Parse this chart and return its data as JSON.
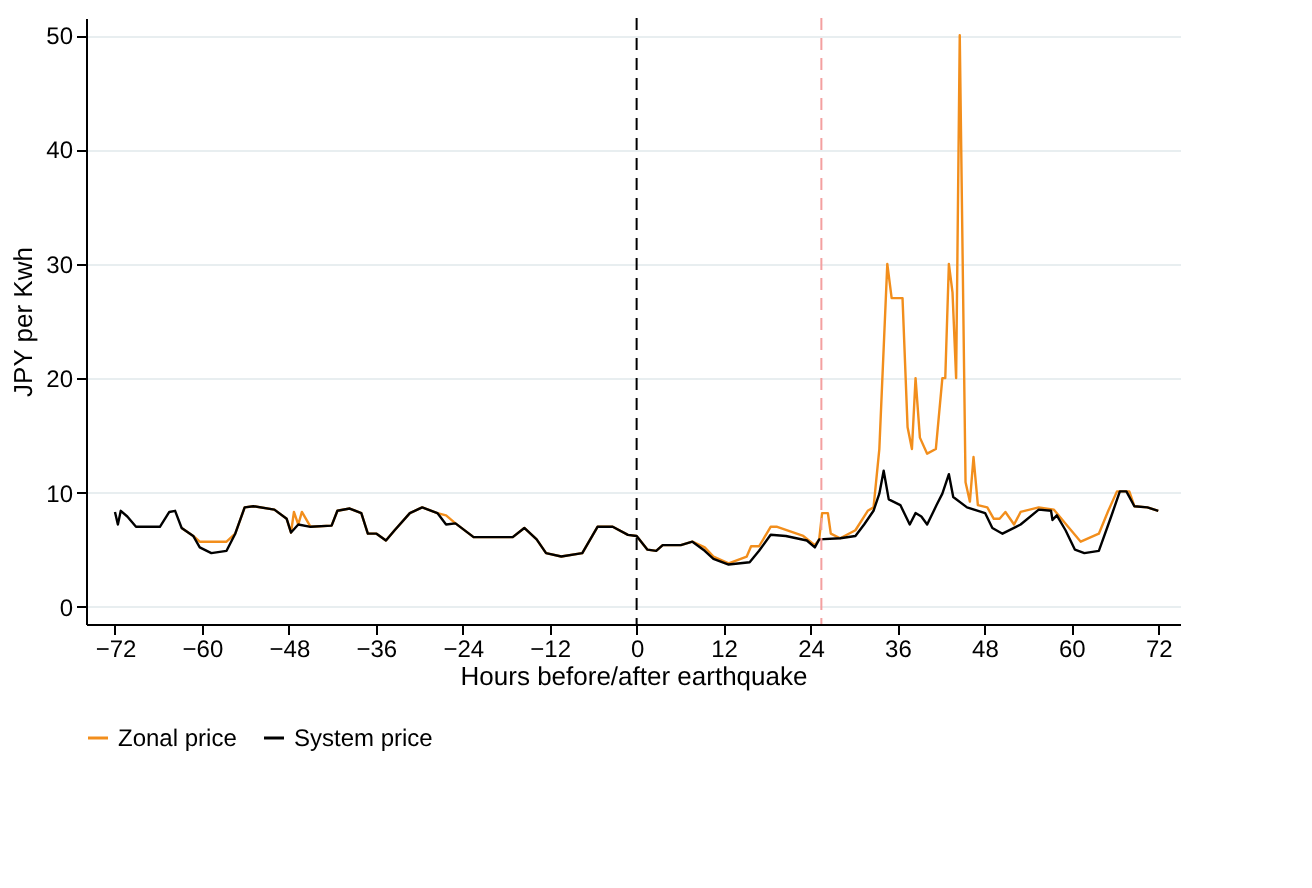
{
  "chart_data": {
    "type": "line",
    "xlabel": "Hours before/after earthquake",
    "ylabel": "JPY per Kwh",
    "xlim": [
      -76,
      75
    ],
    "ylim": [
      -1.5,
      51.5
    ],
    "xticks": [
      -72,
      -60,
      -48,
      -36,
      -24,
      -12,
      0,
      12,
      24,
      36,
      48,
      60,
      72
    ],
    "yticks": [
      0,
      10,
      20,
      30,
      40,
      50
    ],
    "grid": "y",
    "legend": "bottom",
    "line_style": "solid",
    "ref_lines": [
      {
        "axis": "x",
        "value": 0,
        "color": "#000000",
        "line_style": "dashed"
      },
      {
        "axis": "x",
        "value": 25.5,
        "color": "#f4a0a0",
        "line_style": "dashed"
      }
    ],
    "series": [
      {
        "name": "Zonal price",
        "color": "#f28e1c",
        "x": [
          -62.8,
          -61.2,
          -60.3,
          -58.7,
          -56.6,
          -55.4,
          -54.1,
          -52.9,
          -50,
          -48.3,
          -47.7,
          -47.3,
          -46.7,
          -46.2,
          -45,
          -42.1,
          -41.3,
          -39.6,
          -38,
          -37.1,
          -35.9,
          -34.6,
          -33.4,
          -31.3,
          -29.6,
          -27.5,
          -26.3,
          -25,
          -22.5,
          -17.1,
          -15.5,
          -13.8,
          -12.5,
          -10.4,
          -7.5,
          -5.4,
          -3.3,
          -1.2,
          0,
          1.5,
          2.7,
          3.6,
          6.1,
          7.7,
          9.4,
          10.6,
          12.7,
          15.2,
          15.8,
          16.9,
          18.5,
          19.4,
          23,
          24.6,
          25.2,
          25.6,
          26.4,
          26.8,
          28.1,
          30.2,
          31.9,
          32.7,
          33.5,
          34.6,
          35.2,
          36.7,
          37.4,
          38,
          38.5,
          39.1,
          40.1,
          41.3,
          42.2,
          42.6,
          43.1,
          43.6,
          44.1,
          44.6,
          45.4,
          46,
          46.5,
          47.1,
          48.4,
          49.3,
          50.1,
          50.9,
          52.1,
          53,
          55.5,
          57.6,
          59.7,
          61.3,
          63.8,
          65.1,
          66.3,
          68,
          68.7,
          70.5,
          72
        ],
        "values": [
          6.9,
          6.2,
          5.7,
          5.7,
          5.7,
          6.4,
          8.7,
          8.8,
          8.5,
          7.7,
          6.5,
          8.3,
          7.2,
          8.3,
          7,
          7.1,
          8.4,
          8.6,
          8.2,
          6.4,
          6.4,
          5.8,
          6.7,
          8.2,
          8.7,
          8.2,
          8,
          7.3,
          6.1,
          6.1,
          6.9,
          5.9,
          4.7,
          4.4,
          4.7,
          7,
          7,
          6.3,
          6.2,
          5,
          4.9,
          5.4,
          5.4,
          5.7,
          5.2,
          4.4,
          3.8,
          4.4,
          5.3,
          5.3,
          7,
          7,
          6.2,
          5.4,
          5.9,
          8.2,
          8.2,
          6.4,
          6,
          6.7,
          8.4,
          8.7,
          13.8,
          30,
          27,
          27,
          15.7,
          13.8,
          20,
          14.8,
          13.4,
          13.8,
          20,
          20,
          30,
          27.5,
          20,
          50,
          10.9,
          9.2,
          13.1,
          8.9,
          8.7,
          7.7,
          7.7,
          8.3,
          7.2,
          8.3,
          8.7,
          8.5,
          6.9,
          5.7,
          6.4,
          8.4,
          10.1,
          10.1,
          8.8,
          8.7,
          8.4
        ]
      },
      {
        "name": "System price",
        "color": "#000000",
        "x": [
          -72,
          -71.6,
          -71.2,
          -70.3,
          -69.1,
          -65.8,
          -64.5,
          -63.7,
          -62.8,
          -61.2,
          -60.3,
          -58.7,
          -56.6,
          -55.4,
          -54.1,
          -52.9,
          -50,
          -48.3,
          -47.7,
          -46.7,
          -45,
          -42.1,
          -41.3,
          -39.6,
          -38,
          -37.1,
          -35.9,
          -34.6,
          -33.4,
          -31.3,
          -29.6,
          -27.5,
          -26.3,
          -25,
          -22.5,
          -17.1,
          -15.5,
          -13.8,
          -12.5,
          -10.4,
          -7.5,
          -5.4,
          -3.3,
          -1.2,
          0,
          1.5,
          2.7,
          3.6,
          6.1,
          7.7,
          9.4,
          10.6,
          12.7,
          15.6,
          16.9,
          18.5,
          20.6,
          23.5,
          24.6,
          25.2,
          28.1,
          30.2,
          31.4,
          32.7,
          33.5,
          34.1,
          34.8,
          36.4,
          37.7,
          38.5,
          39.3,
          40.1,
          41.4,
          42.2,
          43.1,
          43.7,
          45.6,
          48.1,
          49.1,
          50.5,
          53,
          55.5,
          57.2,
          57.4,
          58,
          59.2,
          60.5,
          61.8,
          63.8,
          65.5,
          66.7,
          67.6,
          68.7,
          70.5,
          72
        ],
        "values": [
          8.3,
          7.2,
          8.4,
          7.9,
          7,
          7,
          8.3,
          8.4,
          6.9,
          6.2,
          5.2,
          4.7,
          4.9,
          6.4,
          8.7,
          8.8,
          8.5,
          7.7,
          6.5,
          7.2,
          7,
          7.1,
          8.4,
          8.6,
          8.2,
          6.4,
          6.4,
          5.8,
          6.7,
          8.2,
          8.7,
          8.2,
          7.2,
          7.3,
          6.1,
          6.1,
          6.9,
          5.9,
          4.7,
          4.4,
          4.7,
          7,
          7,
          6.3,
          6.2,
          5,
          4.9,
          5.4,
          5.4,
          5.7,
          4.9,
          4.2,
          3.7,
          3.9,
          4.9,
          6.3,
          6.2,
          5.8,
          5.2,
          5.9,
          6,
          6.2,
          7.2,
          8.4,
          9.9,
          11.9,
          9.4,
          8.9,
          7.2,
          8.2,
          7.9,
          7.2,
          8.9,
          9.9,
          11.6,
          9.6,
          8.7,
          8.2,
          6.9,
          6.4,
          7.2,
          8.5,
          8.4,
          7.6,
          8,
          6.7,
          5,
          4.7,
          4.9,
          7.9,
          10.1,
          10.1,
          8.8,
          8.7,
          8.4
        ]
      }
    ]
  }
}
